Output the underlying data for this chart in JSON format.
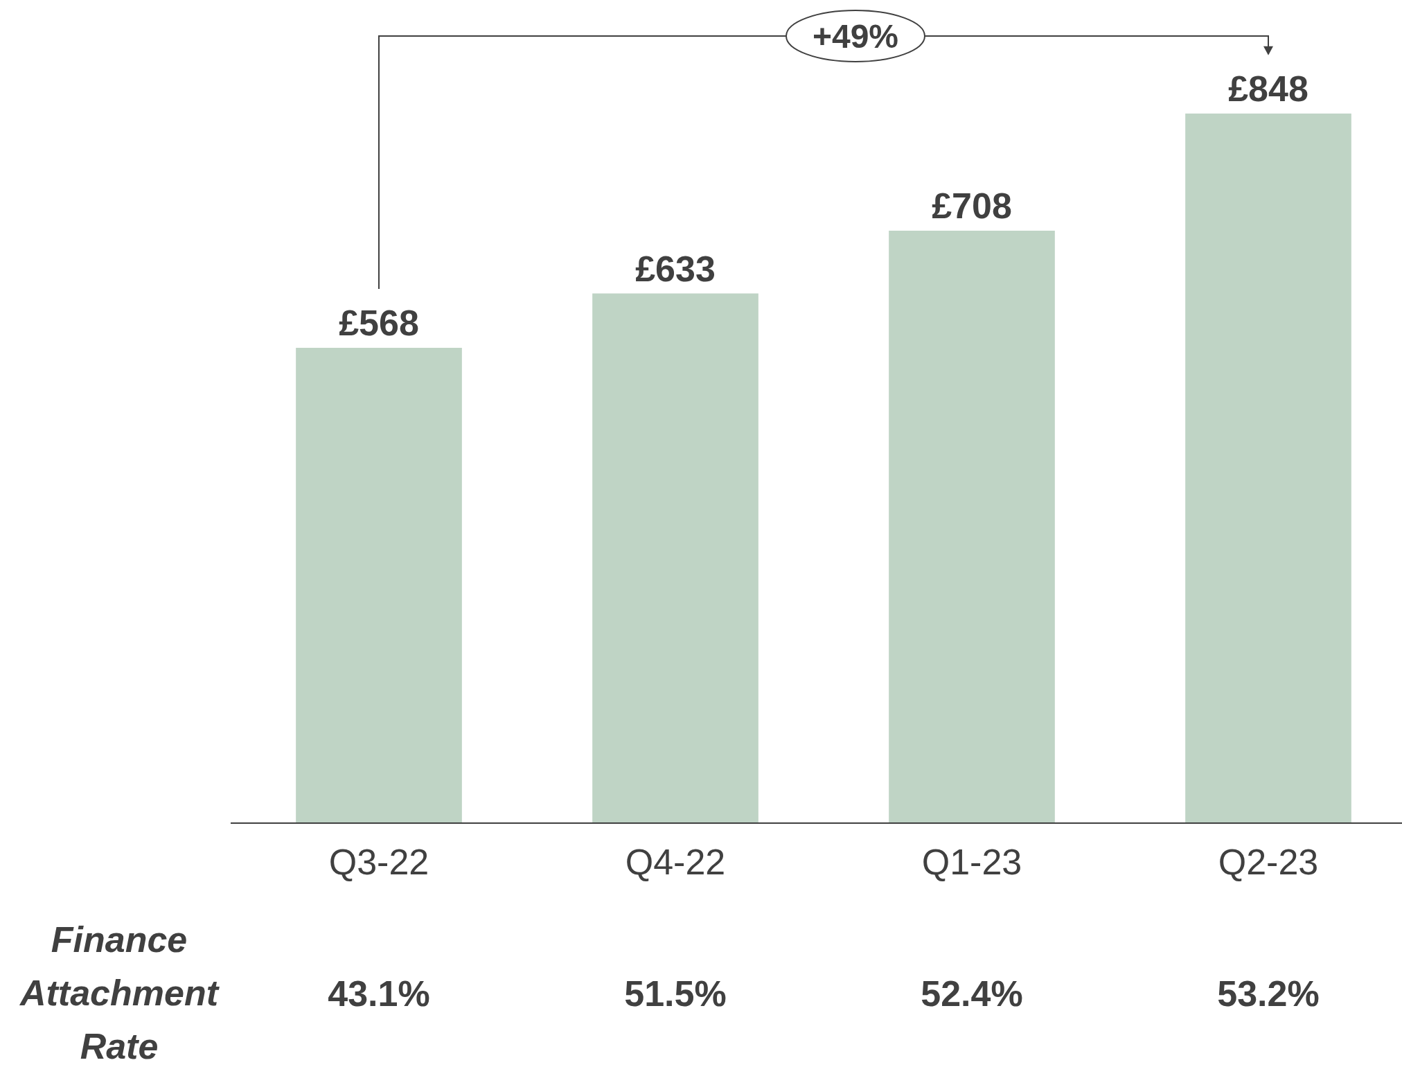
{
  "chart_data": {
    "type": "bar",
    "categories": [
      "Q3-22",
      "Q4-22",
      "Q1-23",
      "Q2-23"
    ],
    "values": [
      568,
      633,
      708,
      848
    ],
    "value_labels": [
      "£568",
      "£633",
      "£708",
      "£848"
    ],
    "color": "#bfd4c5",
    "annotations": [
      "+49%",
      "Finance Attachment Rate",
      "43.1%",
      "51.5%",
      "52.4%",
      "53.2%"
    ]
  }
}
